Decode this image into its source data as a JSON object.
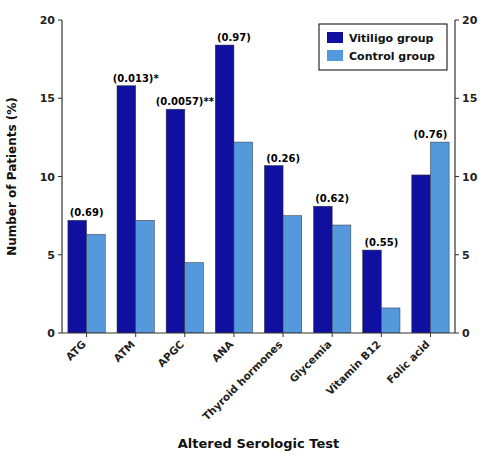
{
  "chart_data": {
    "type": "bar",
    "xlabel": "Altered Serologic Test",
    "ylabel": "Number of Patients (%)",
    "categories": [
      "ATG",
      "ATM",
      "APGC",
      "ANA",
      "Thyroid hormones",
      "Glycemia",
      "Vitamin B12",
      "Folic acid"
    ],
    "series": [
      {
        "name": "Vitiligo group",
        "color": "#1010A0",
        "values": [
          7.2,
          15.8,
          14.3,
          18.4,
          10.7,
          8.1,
          5.3,
          10.1
        ]
      },
      {
        "name": "Control group",
        "color": "#5599DD",
        "values": [
          6.3,
          7.2,
          4.5,
          12.2,
          7.5,
          6.9,
          1.6,
          12.2
        ]
      }
    ],
    "annotations": [
      "(0.69)",
      "(0.013)*",
      "(0.0057)**",
      "(0.97)",
      "(0.26)",
      "(0.62)",
      "(0.55)",
      "(0.76)"
    ],
    "ylim": [
      0,
      20
    ],
    "yticks": [
      0,
      5,
      10,
      15,
      20
    ],
    "y2lim": [
      0,
      20
    ],
    "y2ticks": [
      0,
      5,
      10,
      15,
      20
    ],
    "legend": "upper right",
    "grid": false
  }
}
